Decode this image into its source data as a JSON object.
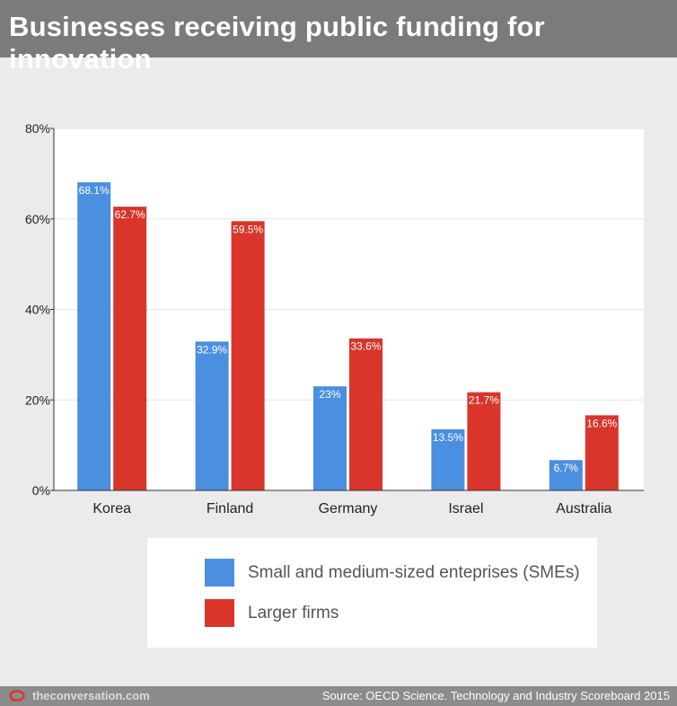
{
  "header": {
    "title": "Businesses receiving public funding for innovation"
  },
  "chart_data": {
    "type": "bar",
    "categories": [
      "Korea",
      "Finland",
      "Germany",
      "Israel",
      "Australia"
    ],
    "series": [
      {
        "name": "Small and medium-sized enteprises (SMEs)",
        "values": [
          68.1,
          32.9,
          23,
          13.5,
          6.7
        ],
        "labels": [
          "68.1%",
          "32.9%",
          "23%",
          "13.5%",
          "6.7%"
        ],
        "color": "#4a8fe0"
      },
      {
        "name": "Larger firms",
        "values": [
          62.7,
          59.5,
          33.6,
          21.7,
          16.6
        ],
        "labels": [
          "62.7%",
          "59.5%",
          "33.6%",
          "21.7%",
          "16.6%"
        ],
        "color": "#d9352b"
      }
    ],
    "yticks": [
      0,
      20,
      40,
      60,
      80
    ],
    "ytick_labels": [
      "0%",
      "20%",
      "40%",
      "60%",
      "80%"
    ],
    "ylim": [
      0,
      80
    ],
    "grid": true,
    "legend_position": "bottom"
  },
  "legend": {
    "items": [
      {
        "label": "Small and medium-sized enteprises (SMEs)",
        "color": "#4a8fe0"
      },
      {
        "label": "Larger firms",
        "color": "#d9352b"
      }
    ]
  },
  "footer": {
    "brand": "theconversation.com",
    "source": "Source: OECD Science. Technology and Industry Scoreboard 2015"
  },
  "icons": {
    "brand": "speech-bubble-icon"
  }
}
